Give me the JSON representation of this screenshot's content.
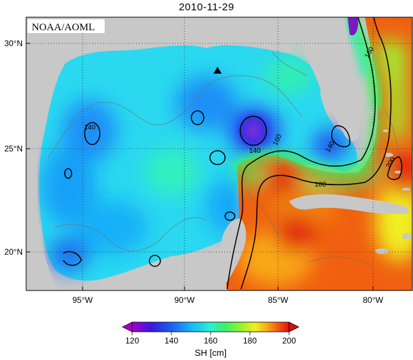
{
  "title": "2010-11-29",
  "credit": "NOAA/AOML",
  "lat_labels": [
    "30°N",
    "25°N",
    "20°N"
  ],
  "lon_labels": [
    "95°W",
    "90°W",
    "85°W",
    "80°W"
  ],
  "contour_labels": [
    "140",
    "140",
    "140",
    "160",
    "160",
    "180",
    "200"
  ],
  "colorbar": {
    "title": "SH [cm]",
    "ticks": [
      "120",
      "140",
      "160",
      "180",
      "200"
    ],
    "colors": [
      "#7a00c8",
      "#3a18e0",
      "#1a4cf0",
      "#1a8cf8",
      "#1ad8f0",
      "#30f0c8",
      "#40f070",
      "#90f040",
      "#f0f020",
      "#f8b018",
      "#f06010",
      "#e02010"
    ]
  },
  "marker": "triangle"
}
